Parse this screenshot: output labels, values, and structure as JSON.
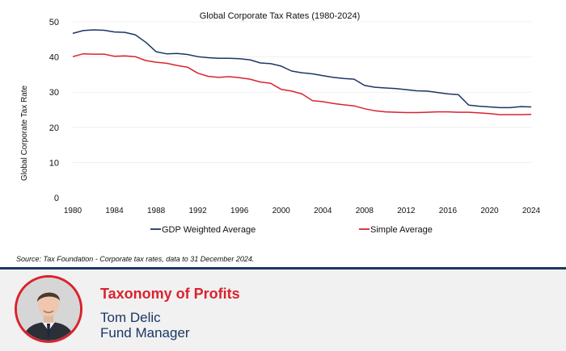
{
  "colors": {
    "gdp": "#1b3764",
    "simple": "#d9232e",
    "divider": "#1b3764",
    "accent": "#d9232e",
    "footer_name": "#1b3764",
    "grid": "#e6e6e6"
  },
  "chart_data": {
    "type": "line",
    "title": "Global Corporate Tax Rates (1980-2024)",
    "xlabel": "",
    "ylabel": "Global Corporate Tax Rate",
    "xlim": [
      1980,
      2024
    ],
    "ylim": [
      0,
      50
    ],
    "xticks": [
      1980,
      1984,
      1988,
      1992,
      1996,
      2000,
      2004,
      2008,
      2012,
      2016,
      2020,
      2024
    ],
    "yticks": [
      0,
      10,
      20,
      30,
      40,
      50
    ],
    "grid": true,
    "legend_position": "bottom",
    "x": [
      1980,
      1981,
      1982,
      1983,
      1984,
      1985,
      1986,
      1987,
      1988,
      1989,
      1990,
      1991,
      1992,
      1993,
      1994,
      1995,
      1996,
      1997,
      1998,
      1999,
      2000,
      2001,
      2002,
      2003,
      2004,
      2005,
      2006,
      2007,
      2008,
      2009,
      2010,
      2011,
      2012,
      2013,
      2014,
      2015,
      2016,
      2017,
      2018,
      2019,
      2020,
      2021,
      2022,
      2023,
      2024
    ],
    "series": [
      {
        "name": "GDP Weighted Average",
        "values": [
          46.7,
          47.5,
          47.7,
          47.6,
          47.1,
          47.0,
          46.3,
          44.2,
          41.5,
          40.9,
          41.0,
          40.7,
          40.1,
          39.8,
          39.6,
          39.6,
          39.5,
          39.2,
          38.3,
          38.1,
          37.4,
          36.0,
          35.5,
          35.2,
          34.7,
          34.2,
          33.9,
          33.7,
          31.9,
          31.4,
          31.2,
          31.0,
          30.7,
          30.4,
          30.3,
          29.9,
          29.5,
          29.3,
          26.3,
          26.0,
          25.8,
          25.6,
          25.6,
          25.9,
          25.8
        ]
      },
      {
        "name": "Simple Average",
        "values": [
          40.1,
          40.9,
          40.8,
          40.8,
          40.2,
          40.3,
          40.1,
          39.0,
          38.5,
          38.2,
          37.6,
          37.1,
          35.4,
          34.5,
          34.2,
          34.4,
          34.1,
          33.7,
          32.9,
          32.5,
          30.8,
          30.3,
          29.5,
          27.6,
          27.3,
          26.8,
          26.4,
          26.1,
          25.3,
          24.7,
          24.4,
          24.3,
          24.2,
          24.2,
          24.3,
          24.4,
          24.4,
          24.3,
          24.3,
          24.1,
          23.9,
          23.6,
          23.6,
          23.6,
          23.7
        ]
      }
    ]
  },
  "source": "Source: Tax Foundation - Corporate tax rates, data to 31 December 2024.",
  "footer": {
    "title": "Taxonomy of Profits",
    "name": "Tom Delic",
    "role": "Fund Manager"
  }
}
